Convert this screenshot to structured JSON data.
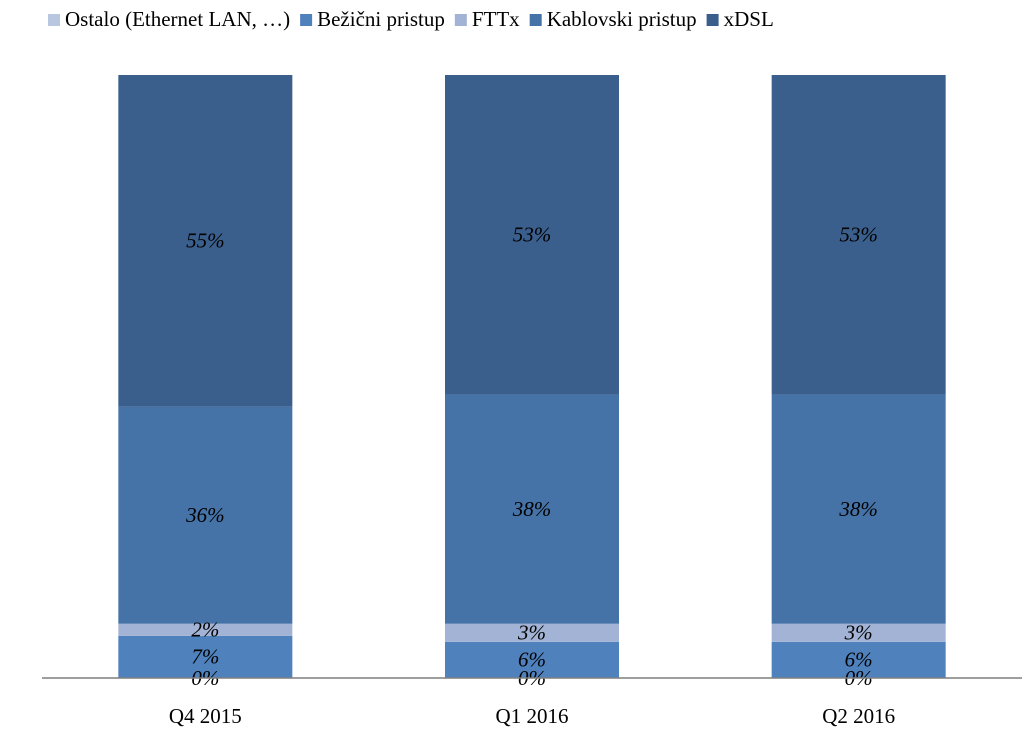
{
  "chart_data": {
    "type": "bar",
    "stacked": true,
    "categories": [
      "Q4 2015",
      "Q1 2016",
      "Q2 2016"
    ],
    "ylim": [
      0,
      100
    ],
    "legend": "top",
    "series": [
      {
        "name": "Ostalo (Ethernet LAN, …)",
        "color": "#b9c6df",
        "values": [
          0,
          0,
          0
        ],
        "value_labels": [
          "0%",
          "0%",
          "0%"
        ]
      },
      {
        "name": "Bežični pristup",
        "color": "#4f81bd",
        "values": [
          7,
          6,
          6
        ],
        "value_labels": [
          "7%",
          "6%",
          "6%"
        ]
      },
      {
        "name": "FTTx",
        "color": "#a2b3d5",
        "values": [
          2,
          3,
          3
        ],
        "value_labels": [
          "2%",
          "3%",
          "3%"
        ]
      },
      {
        "name": "Kablovski pristup",
        "color": "#4572a7",
        "values": [
          36,
          38,
          38
        ],
        "value_labels": [
          "36%",
          "38%",
          "38%"
        ]
      },
      {
        "name": "xDSL",
        "color": "#3b5f8d",
        "values": [
          55,
          53,
          53
        ],
        "value_labels": [
          "55%",
          "53%",
          "53%"
        ]
      }
    ]
  }
}
